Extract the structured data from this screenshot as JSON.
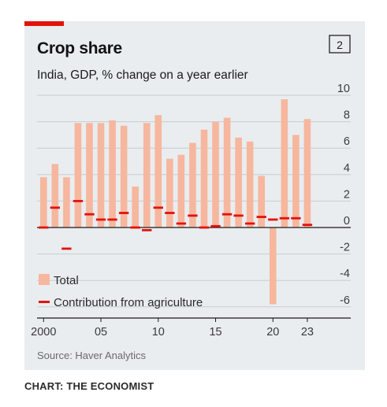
{
  "title": "Crop share",
  "subtitle": "India, GDP, % change on a year earlier",
  "badge": "2",
  "source": "Source: Haver Analytics",
  "credit": "CHART: THE ECONOMIST",
  "colors": {
    "accent": "#e3120b",
    "bar": "#f6b79e",
    "agri": "#e3120b",
    "panel": "#e9edf0"
  },
  "chart_data": {
    "type": "bar",
    "x": [
      2000,
      2001,
      2002,
      2003,
      2004,
      2005,
      2006,
      2007,
      2008,
      2009,
      2010,
      2011,
      2012,
      2013,
      2014,
      2015,
      2016,
      2017,
      2018,
      2019,
      2020,
      2021,
      2022,
      2023
    ],
    "xticks": [
      "2000",
      "05",
      "10",
      "15",
      "20",
      "23"
    ],
    "xtick_years": [
      2000,
      2005,
      2010,
      2015,
      2020,
      2023
    ],
    "yticks": [
      "10",
      "8",
      "6",
      "4",
      "2",
      "0",
      "-2",
      "-4",
      "-6"
    ],
    "ylim": [
      -6,
      10
    ],
    "grid": true,
    "legend_position": "bottom-left",
    "series": [
      {
        "name": "Total",
        "type": "bar",
        "values": [
          3.8,
          4.8,
          3.8,
          7.9,
          7.9,
          7.9,
          8.1,
          7.7,
          3.1,
          7.9,
          8.5,
          5.2,
          5.5,
          6.4,
          7.4,
          8.0,
          8.3,
          6.8,
          6.5,
          3.9,
          -5.8,
          9.7,
          7.0,
          8.2
        ]
      },
      {
        "name": "Contribution from agriculture",
        "type": "marker",
        "values": [
          0.0,
          1.5,
          -1.6,
          2.0,
          1.0,
          0.6,
          0.6,
          1.1,
          0.0,
          -0.2,
          1.5,
          1.1,
          0.3,
          0.9,
          0.0,
          0.1,
          1.0,
          0.9,
          0.3,
          0.8,
          0.6,
          0.7,
          0.7,
          0.2
        ]
      }
    ]
  }
}
